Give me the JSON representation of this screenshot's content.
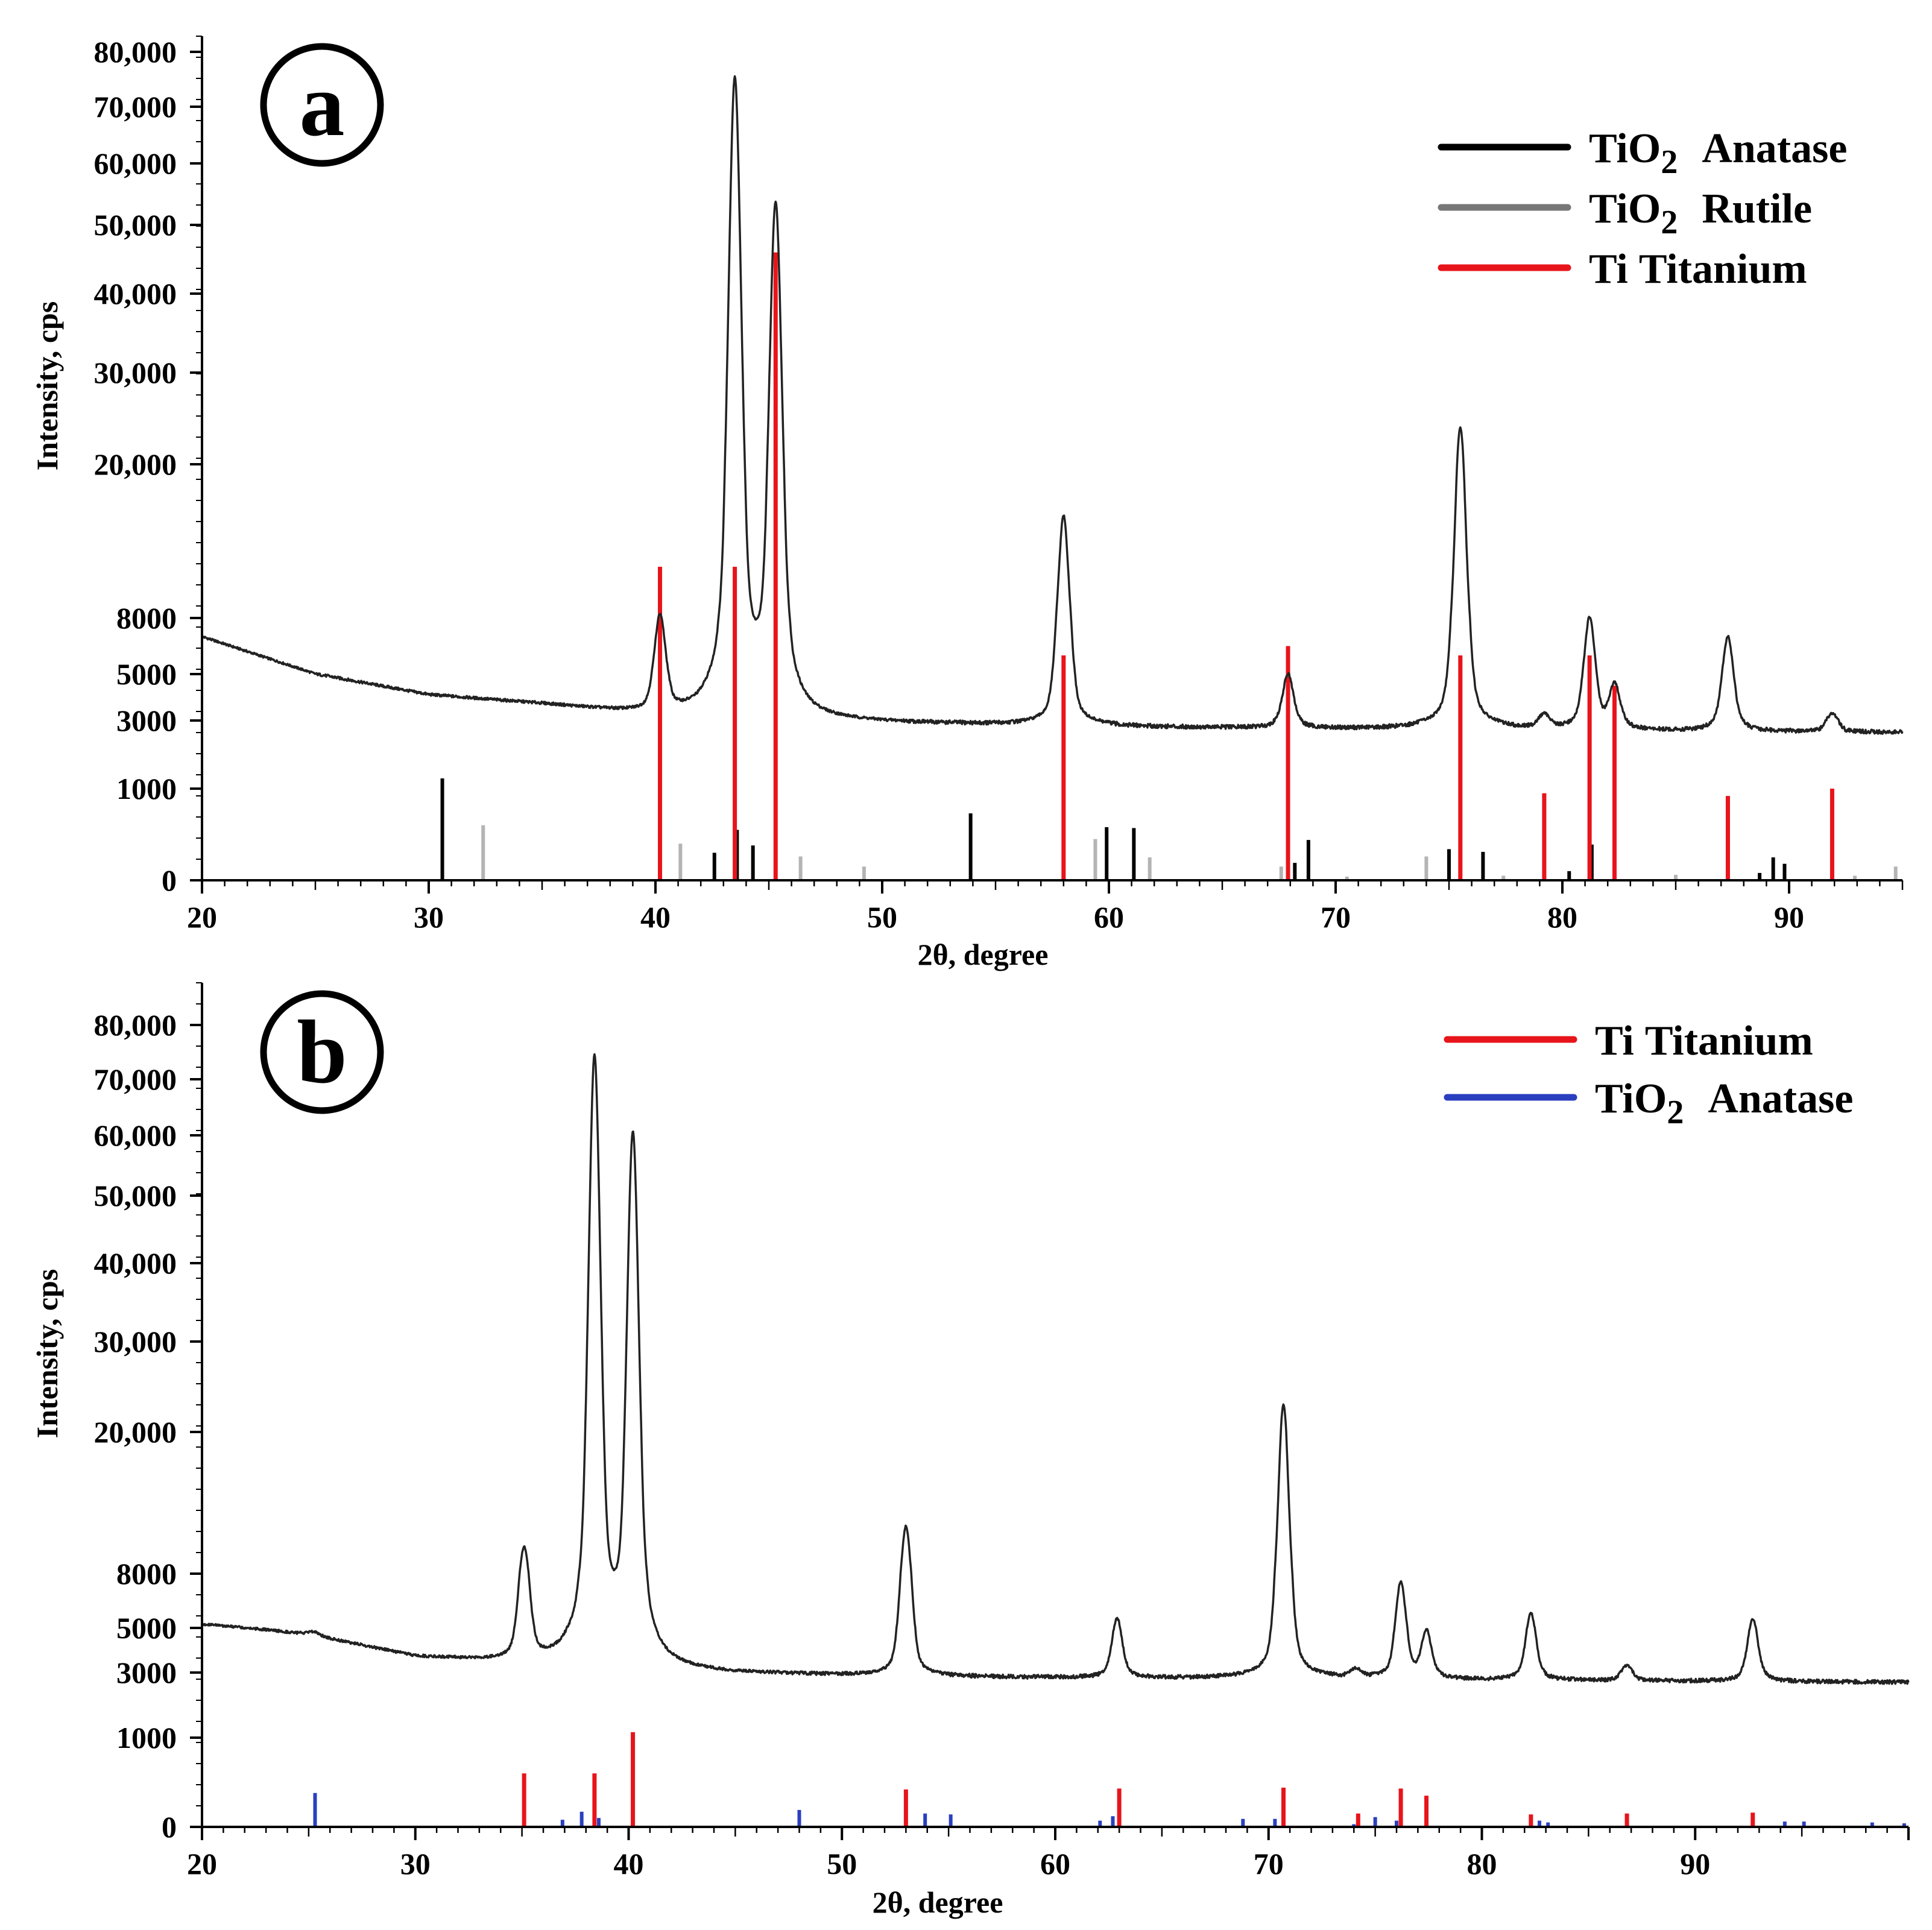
{
  "chart_data": [
    {
      "type": "line",
      "panel_label": "a",
      "xlabel": "2θ, degree",
      "ylabel": "Intensity, cps",
      "xlim": [
        20,
        95
      ],
      "x_ticks": [
        20,
        30,
        40,
        50,
        60,
        70,
        80,
        90
      ],
      "y_ticks": [
        {
          "value": 0,
          "label": "0"
        },
        {
          "value": 1000,
          "label": "1000"
        },
        {
          "value": 3000,
          "label": "3000"
        },
        {
          "value": 5000,
          "label": "5000"
        },
        {
          "value": 8000,
          "label": "8000"
        },
        {
          "value": 20000,
          "label": "20,000"
        },
        {
          "value": 30000,
          "label": "30,000"
        },
        {
          "value": 40000,
          "label": "40,000"
        },
        {
          "value": 50000,
          "label": "50,000"
        },
        {
          "value": 60000,
          "label": "60,000"
        },
        {
          "value": 70000,
          "label": "70,000"
        },
        {
          "value": 80000,
          "label": "80,000"
        }
      ],
      "legend": [
        {
          "formula": "TiO",
          "sub": "2",
          "name": "Anatase",
          "color": "#000000"
        },
        {
          "formula": "TiO",
          "sub": "2",
          "name": "Rutile",
          "color": "#777777"
        },
        {
          "formula": "Ti",
          "sub": "",
          "name": "Titanium",
          "color": "#e8141b"
        }
      ],
      "pattern": {
        "color": "#222222",
        "baseline": [
          [
            20,
            7000
          ],
          [
            25,
            5000
          ],
          [
            30,
            4100
          ],
          [
            35,
            3700
          ],
          [
            39,
            3300
          ],
          [
            42,
            3100
          ],
          [
            50,
            2900
          ],
          [
            60,
            2800
          ],
          [
            70,
            2750
          ],
          [
            80,
            2700
          ],
          [
            95,
            2650
          ]
        ],
        "peaks": [
          {
            "x": 40.2,
            "y": 8000
          },
          {
            "x": 43.5,
            "y": 75000
          },
          {
            "x": 45.3,
            "y": 53000
          },
          {
            "x": 58.0,
            "y": 16000
          },
          {
            "x": 67.9,
            "y": 5000
          },
          {
            "x": 75.5,
            "y": 24000
          },
          {
            "x": 79.2,
            "y": 3200
          },
          {
            "x": 81.2,
            "y": 8000
          },
          {
            "x": 82.3,
            "y": 4500
          },
          {
            "x": 87.3,
            "y": 7000
          },
          {
            "x": 91.9,
            "y": 3300
          }
        ]
      },
      "reference_sticks": [
        {
          "phase": "TiO2 Anatase",
          "color": "#000000",
          "sticks": [
            [
              30.6,
              1300
            ],
            [
              42.6,
              300
            ],
            [
              43.6,
              550
            ],
            [
              44.3,
              380
            ],
            [
              53.9,
              730
            ],
            [
              59.9,
              580
            ],
            [
              61.1,
              570
            ],
            [
              68.2,
              190
            ],
            [
              68.8,
              440
            ],
            [
              75.0,
              340
            ],
            [
              76.5,
              310
            ],
            [
              80.3,
              100
            ],
            [
              81.3,
              390
            ],
            [
              82.3,
              190
            ],
            [
              88.7,
              80
            ],
            [
              89.3,
              250
            ],
            [
              89.8,
              180
            ]
          ]
        },
        {
          "phase": "TiO2 Rutile",
          "color": "#b4b4b4",
          "sticks": [
            [
              32.4,
              600
            ],
            [
              41.1,
              400
            ],
            [
              46.4,
              260
            ],
            [
              49.2,
              150
            ],
            [
              59.4,
              450
            ],
            [
              61.8,
              250
            ],
            [
              67.6,
              150
            ],
            [
              70.5,
              40
            ],
            [
              74.0,
              260
            ],
            [
              77.4,
              50
            ],
            [
              85.0,
              60
            ],
            [
              92.9,
              50
            ],
            [
              94.7,
              150
            ]
          ]
        },
        {
          "phase": "Ti Titanium",
          "color": "#e8141b",
          "sticks": [
            [
              40.2,
              12000
            ],
            [
              43.5,
              12000
            ],
            [
              45.3,
              46000
            ],
            [
              58.0,
              6000
            ],
            [
              67.9,
              6500
            ],
            [
              75.5,
              6000
            ],
            [
              79.2,
              950
            ],
            [
              81.2,
              6000
            ],
            [
              82.3,
              4500
            ],
            [
              87.3,
              920
            ],
            [
              91.9,
              1000
            ]
          ]
        }
      ]
    },
    {
      "type": "line",
      "panel_label": "b",
      "xlabel": "2θ, degree",
      "ylabel": "Intensity, cps",
      "xlim": [
        20,
        100
      ],
      "x_ticks": [
        20,
        30,
        40,
        50,
        60,
        70,
        80,
        90
      ],
      "y_ticks": [
        {
          "value": 0,
          "label": "0"
        },
        {
          "value": 1000,
          "label": "1000"
        },
        {
          "value": 3000,
          "label": "3000"
        },
        {
          "value": 5000,
          "label": "5000"
        },
        {
          "value": 8000,
          "label": "8000"
        },
        {
          "value": 20000,
          "label": "20,000"
        },
        {
          "value": 30000,
          "label": "30,000"
        },
        {
          "value": 40000,
          "label": "40,000"
        },
        {
          "value": 50000,
          "label": "50,000"
        },
        {
          "value": 60000,
          "label": "60,000"
        },
        {
          "value": 70000,
          "label": "70,000"
        },
        {
          "value": 80000,
          "label": "80,000"
        }
      ],
      "legend": [
        {
          "formula": "Ti",
          "sub": "",
          "name": "Titanium",
          "color": "#e8141b"
        },
        {
          "formula": "TiO",
          "sub": "2",
          "name": "Anatase",
          "color": "#2a3fbf"
        }
      ],
      "pattern": {
        "color": "#222222",
        "baseline": [
          [
            20,
            5200
          ],
          [
            25,
            4700
          ],
          [
            30,
            3700
          ],
          [
            35,
            3400
          ],
          [
            45,
            2950
          ],
          [
            55,
            2850
          ],
          [
            70,
            2800
          ],
          [
            85,
            2750
          ],
          [
            100,
            2700
          ]
        ],
        "peaks": [
          {
            "x": 25.3,
            "y": 4800
          },
          {
            "x": 35.1,
            "y": 10000
          },
          {
            "x": 38.4,
            "y": 74000
          },
          {
            "x": 40.2,
            "y": 60000
          },
          {
            "x": 53.0,
            "y": 12000
          },
          {
            "x": 62.9,
            "y": 5500
          },
          {
            "x": 70.7,
            "y": 23000
          },
          {
            "x": 74.1,
            "y": 3100
          },
          {
            "x": 76.2,
            "y": 7500
          },
          {
            "x": 77.4,
            "y": 4800
          },
          {
            "x": 82.3,
            "y": 5800
          },
          {
            "x": 86.8,
            "y": 3300
          },
          {
            "x": 92.7,
            "y": 5500
          }
        ]
      },
      "reference_sticks": [
        {
          "phase": "Ti Titanium",
          "color": "#e8141b",
          "sticks": [
            [
              35.1,
              600
            ],
            [
              38.4,
              600
            ],
            [
              40.2,
              1170
            ],
            [
              53.0,
              420
            ],
            [
              63.0,
              430
            ],
            [
              70.7,
              440
            ],
            [
              74.2,
              150
            ],
            [
              76.2,
              430
            ],
            [
              77.4,
              350
            ],
            [
              82.3,
              140
            ],
            [
              86.8,
              150
            ],
            [
              92.7,
              160
            ]
          ]
        },
        {
          "phase": "TiO2 Anatase",
          "color": "#2a3fbf",
          "sticks": [
            [
              25.3,
              380
            ],
            [
              36.9,
              80
            ],
            [
              37.8,
              170
            ],
            [
              38.6,
              100
            ],
            [
              48.0,
              190
            ],
            [
              53.9,
              150
            ],
            [
              55.1,
              140
            ],
            [
              62.1,
              70
            ],
            [
              62.7,
              120
            ],
            [
              68.8,
              90
            ],
            [
              70.3,
              90
            ],
            [
              74.0,
              30
            ],
            [
              75.0,
              110
            ],
            [
              76.0,
              70
            ],
            [
              82.7,
              70
            ],
            [
              83.1,
              50
            ],
            [
              94.2,
              60
            ],
            [
              95.1,
              60
            ],
            [
              98.3,
              50
            ],
            [
              99.8,
              40
            ]
          ]
        }
      ]
    }
  ]
}
